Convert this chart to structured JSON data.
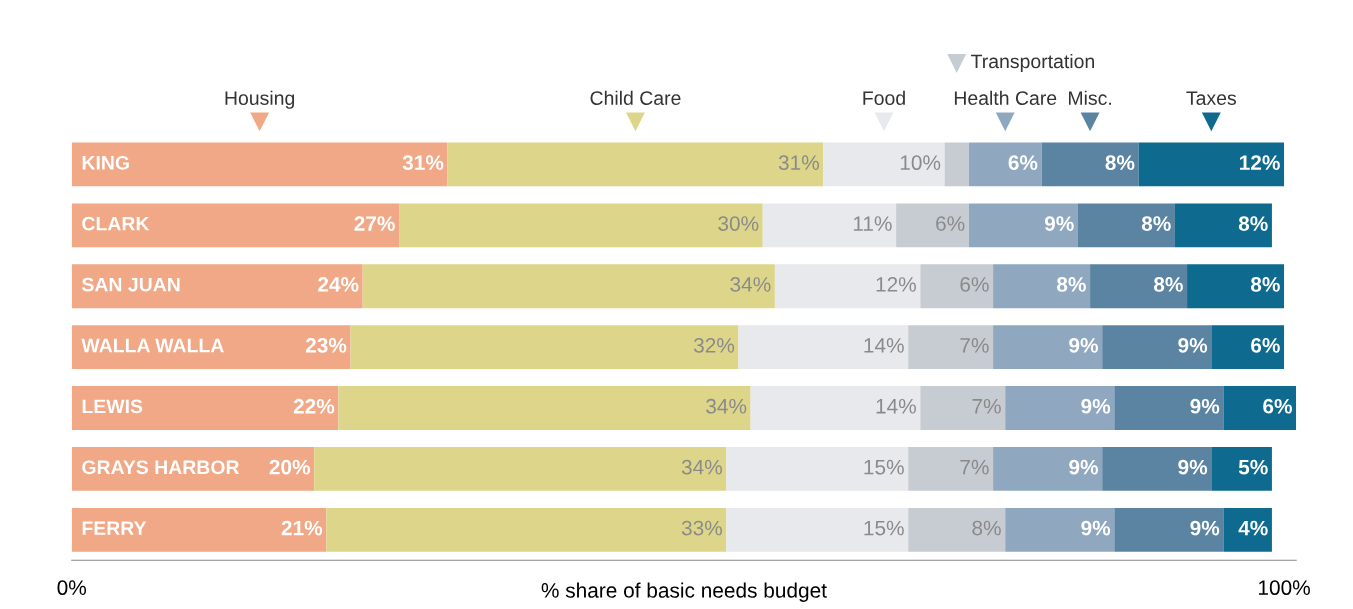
{
  "chart_data": {
    "type": "bar",
    "orientation": "horizontal",
    "stacked": true,
    "legend": "top",
    "marker": "triangle",
    "xlabel": "% share of basic needs budget",
    "categories": [
      "KING",
      "CLARK",
      "SAN JUAN",
      "WALLA WALLA",
      "LEWIS",
      "GRAYS HARBOR",
      "FERRY"
    ],
    "xlim": [
      0,
      101
    ],
    "xticks": [
      {
        "value": 0,
        "label": "0%"
      },
      {
        "value": 100,
        "label": "100%"
      }
    ],
    "series": [
      {
        "name": "Housing",
        "color": "#f0a886",
        "values": [
          31,
          27,
          24,
          23,
          22,
          20,
          21
        ],
        "value_labels": [
          "31%",
          "27%",
          "24%",
          "23%",
          "22%",
          "20%",
          "21%"
        ]
      },
      {
        "name": "Child Care",
        "color": "#ddd68a",
        "values": [
          31,
          30,
          34,
          32,
          34,
          34,
          33
        ],
        "value_labels": [
          "31%",
          "30%",
          "34%",
          "32%",
          "34%",
          "34%",
          "33%"
        ]
      },
      {
        "name": "Food",
        "color": "#e8e9ec",
        "values": [
          10,
          11,
          12,
          14,
          14,
          15,
          15
        ],
        "value_labels": [
          "10%",
          "11%",
          "12%",
          "14%",
          "14%",
          "15%",
          "15%"
        ]
      },
      {
        "name": "Transportation",
        "color": "#c7ccd3",
        "values": [
          2,
          6,
          6,
          7,
          7,
          7,
          8
        ],
        "value_labels": [
          null,
          "6%",
          "6%",
          "7%",
          "7%",
          "7%",
          "8%"
        ]
      },
      {
        "name": "Health Care",
        "color": "#8fa8c0",
        "values": [
          6,
          9,
          8,
          9,
          9,
          9,
          9
        ],
        "value_labels": [
          "6%",
          "9%",
          "8%",
          "9%",
          "9%",
          "9%",
          "9%"
        ]
      },
      {
        "name": "Misc.",
        "color": "#5b84a3",
        "values": [
          8,
          8,
          8,
          9,
          9,
          9,
          9
        ],
        "value_labels": [
          "8%",
          "8%",
          "8%",
          "9%",
          "9%",
          "9%",
          "9%"
        ]
      },
      {
        "name": "Taxes",
        "color": "#0e6a8e",
        "values": [
          12,
          8,
          8,
          6,
          6,
          5,
          4
        ],
        "value_labels": [
          "12%",
          "8%",
          "8%",
          "6%",
          "6%",
          "5%",
          "4%"
        ]
      }
    ]
  }
}
